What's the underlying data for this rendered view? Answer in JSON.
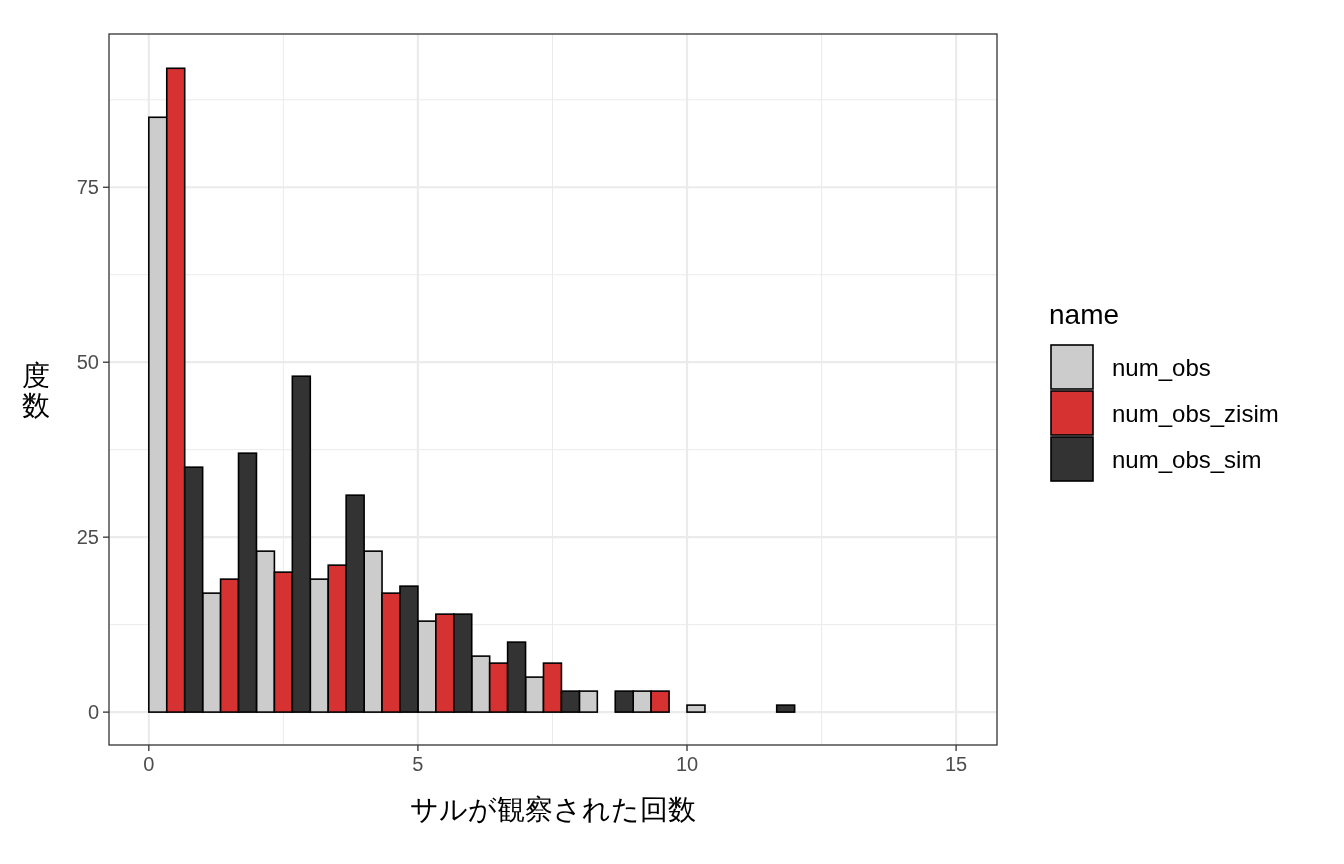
{
  "chart_data": {
    "type": "histogram",
    "xlabel": "サルが観察された回数",
    "ylabel": "度数",
    "legend_title": "name",
    "bins": [
      0,
      1,
      2,
      3,
      4,
      5,
      6,
      7,
      8,
      9,
      10,
      11,
      12,
      13,
      14,
      15
    ],
    "series": [
      {
        "name": "num_obs",
        "color": "#cccccc",
        "values": [
          85,
          17,
          23,
          19,
          23,
          13,
          8,
          5,
          3,
          3,
          1,
          0,
          0,
          0,
          0
        ]
      },
      {
        "name": "num_obs_zisim",
        "color": "#d73232",
        "values": [
          92,
          19,
          20,
          21,
          17,
          14,
          7,
          7,
          0,
          3,
          0,
          0,
          0,
          0,
          0
        ]
      },
      {
        "name": "num_obs_sim",
        "color": "#333333",
        "values": [
          35,
          37,
          48,
          31,
          18,
          14,
          10,
          3,
          3,
          0,
          0,
          1,
          0,
          0,
          0
        ]
      }
    ],
    "xlim": [
      -0.74,
      15.76
    ],
    "ylim": [
      -4.7,
      96.9
    ],
    "xticks": [
      0,
      5,
      10,
      15
    ],
    "yticks": [
      0,
      25,
      50,
      75
    ],
    "grid": true,
    "legend": "right"
  }
}
